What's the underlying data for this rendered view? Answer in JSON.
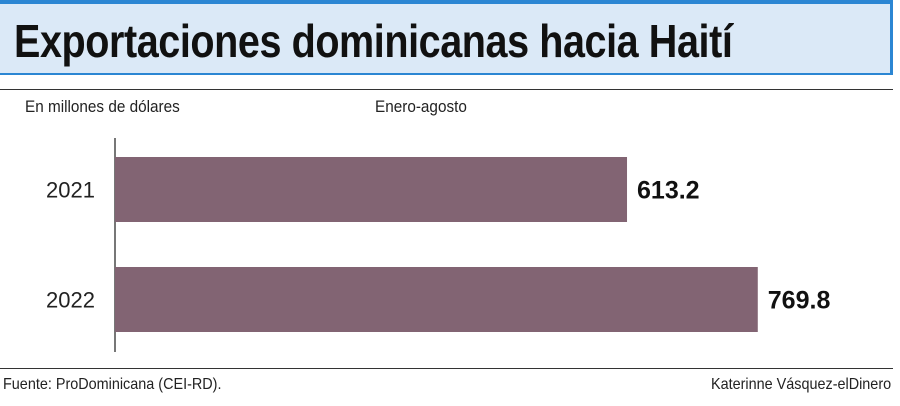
{
  "header": {
    "title": "Exportaciones dominicanas hacia Haití"
  },
  "chart_data": {
    "type": "bar",
    "orientation": "horizontal",
    "title": "Exportaciones dominicanas hacia Haití",
    "unit_label": "En millones de dólares",
    "period_label": "Enero-agosto",
    "categories": [
      "2021",
      "2022"
    ],
    "values": [
      613.2,
      769.8
    ],
    "value_labels": [
      "613.2",
      "769.8"
    ],
    "xlim": [
      0,
      800
    ],
    "grid": false,
    "legend": "none",
    "bar_color": "#826473"
  },
  "footer": {
    "source": "Fuente: ProDominicana (CEI-RD).",
    "credit": "Katerinne Vásquez-elDinero"
  },
  "colors": {
    "accent": "#2b86d3",
    "title_band": "#dbe9f7",
    "bar": "#826473"
  }
}
